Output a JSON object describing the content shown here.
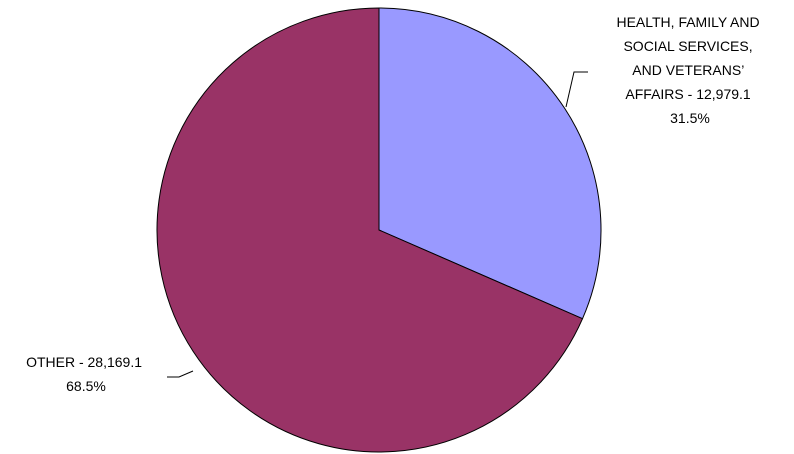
{
  "chart_data": {
    "type": "pie",
    "title": "",
    "start_angle_deg": 0,
    "direction": "clockwise",
    "slices": [
      {
        "label_lines": [
          "HEALTH, FAMILY AND",
          "SOCIAL SERVICES,",
          "AND VETERANS’",
          "AFFAIRS - 12,979.1"
        ],
        "category": "HEALTH, FAMILY AND SOCIAL SERVICES, AND VETERANS’ AFFAIRS",
        "value": 12979.1,
        "value_text": "12,979.1",
        "percent_text": "31.5%",
        "color": "#9999FF"
      },
      {
        "label_lines": [
          "OTHER - 28,169.1"
        ],
        "category": "OTHER",
        "value": 28169.1,
        "value_text": "28,169.1",
        "percent_text": "68.5%",
        "color": "#993366"
      }
    ]
  }
}
